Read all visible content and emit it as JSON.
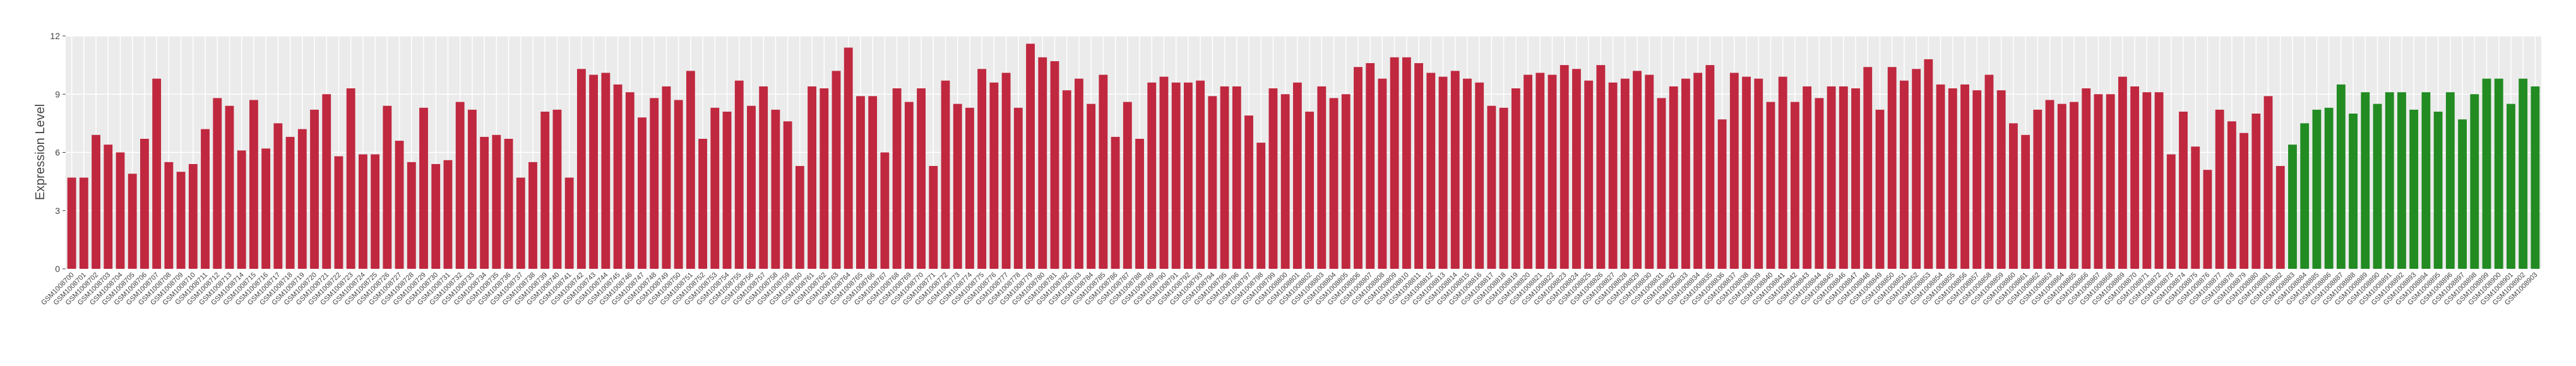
{
  "chart_data": {
    "type": "bar",
    "y_label": "Expression Level",
    "ylim": [
      0,
      12
    ],
    "yticks": [
      0,
      3,
      6,
      9,
      12
    ],
    "grid": true,
    "categories": [
      "GSM1008700",
      "GSM1008701",
      "GSM1008702",
      "GSM1008703",
      "GSM1008704",
      "GSM1008705",
      "GSM1008706",
      "GSM1008707",
      "GSM1008708",
      "GSM1008709",
      "GSM1008710",
      "GSM1008711",
      "GSM1008712",
      "GSM1008713",
      "GSM1008714",
      "GSM1008715",
      "GSM1008716",
      "GSM1008717",
      "GSM1008718",
      "GSM1008719",
      "GSM1008720",
      "GSM1008721",
      "GSM1008722",
      "GSM1008723",
      "GSM1008724",
      "GSM1008725",
      "GSM1008726",
      "GSM1008727",
      "GSM1008728",
      "GSM1008729",
      "GSM1008730",
      "GSM1008731",
      "GSM1008732",
      "GSM1008733",
      "GSM1008734",
      "GSM1008735",
      "GSM1008736",
      "GSM1008737",
      "GSM1008738",
      "GSM1008739",
      "GSM1008740",
      "GSM1008741",
      "GSM1008742",
      "GSM1008743",
      "GSM1008744",
      "GSM1008745",
      "GSM1008746",
      "GSM1008747",
      "GSM1008748",
      "GSM1008749",
      "GSM1008750",
      "GSM1008751",
      "GSM1008752",
      "GSM1008753",
      "GSM1008754",
      "GSM1008755",
      "GSM1008756",
      "GSM1008757",
      "GSM1008758",
      "GSM1008759",
      "GSM1008760",
      "GSM1008761",
      "GSM1008762",
      "GSM1008763",
      "GSM1008764",
      "GSM1008765",
      "GSM1008766",
      "GSM1008767",
      "GSM1008768",
      "GSM1008769",
      "GSM1008770",
      "GSM1008771",
      "GSM1008772",
      "GSM1008773",
      "GSM1008774",
      "GSM1008775",
      "GSM1008776",
      "GSM1008777",
      "GSM1008778",
      "GSM1008779",
      "GSM1008780",
      "GSM1008781",
      "GSM1008782",
      "GSM1008783",
      "GSM1008784",
      "GSM1008785",
      "GSM1008786",
      "GSM1008787",
      "GSM1008788",
      "GSM1008789",
      "GSM1008790",
      "GSM1008791",
      "GSM1008792",
      "GSM1008793",
      "GSM1008794",
      "GSM1008795",
      "GSM1008796",
      "GSM1008797",
      "GSM1008798",
      "GSM1008799",
      "GSM1008800",
      "GSM1008801",
      "GSM1008802",
      "GSM1008803",
      "GSM1008804",
      "GSM1008805",
      "GSM1008806",
      "GSM1008807",
      "GSM1008808",
      "GSM1008809",
      "GSM1008810",
      "GSM1008811",
      "GSM1008812",
      "GSM1008813",
      "GSM1008814",
      "GSM1008815",
      "GSM1008816",
      "GSM1008817",
      "GSM1008818",
      "GSM1008819",
      "GSM1008820",
      "GSM1008821",
      "GSM1008822",
      "GSM1008823",
      "GSM1008824",
      "GSM1008825",
      "GSM1008826",
      "GSM1008827",
      "GSM1008828",
      "GSM1008829",
      "GSM1008830",
      "GSM1008831",
      "GSM1008832",
      "GSM1008833",
      "GSM1008834",
      "GSM1008835",
      "GSM1008836",
      "GSM1008837",
      "GSM1008838",
      "GSM1008839",
      "GSM1008840",
      "GSM1008841",
      "GSM1008842",
      "GSM1008843",
      "GSM1008844",
      "GSM1008845",
      "GSM1008846",
      "GSM1008847",
      "GSM1008848",
      "GSM1008849",
      "GSM1008850",
      "GSM1008851",
      "GSM1008852",
      "GSM1008853",
      "GSM1008854",
      "GSM1008855",
      "GSM1008856",
      "GSM1008857",
      "GSM1008858",
      "GSM1008859",
      "GSM1008860",
      "GSM1008861",
      "GSM1008862",
      "GSM1008863",
      "GSM1008864",
      "GSM1008865",
      "GSM1008866",
      "GSM1008867",
      "GSM1008868",
      "GSM1008869",
      "GSM1008870",
      "GSM1008871",
      "GSM1008872",
      "GSM1008873",
      "GSM1008874",
      "GSM1008875",
      "GSM1008876",
      "GSM1008877",
      "GSM1008878",
      "GSM1008879",
      "GSM1008880",
      "GSM1008881",
      "GSM1008882",
      "GSM1008883",
      "GSM1008884",
      "GSM1008885",
      "GSM1008886",
      "GSM1008887",
      "GSM1008888",
      "GSM1008889",
      "GSM1008890",
      "GSM1008891",
      "GSM1008892",
      "GSM1008893",
      "GSM1008894",
      "GSM1008895",
      "GSM1008896",
      "GSM1008897",
      "GSM1008898",
      "GSM1008899",
      "GSM1008900",
      "GSM1008901",
      "GSM1008902",
      "GSM1008903"
    ],
    "values": [
      4.7,
      4.7,
      6.9,
      6.4,
      6.0,
      4.9,
      6.7,
      9.8,
      5.5,
      5.0,
      5.4,
      7.2,
      8.8,
      8.4,
      6.1,
      8.7,
      6.2,
      7.5,
      6.8,
      7.2,
      8.2,
      9.0,
      5.8,
      9.3,
      5.9,
      5.9,
      8.4,
      6.6,
      5.5,
      8.3,
      5.4,
      5.6,
      8.6,
      8.2,
      6.8,
      6.9,
      6.7,
      4.7,
      5.5,
      8.1,
      8.2,
      4.7,
      10.3,
      10.0,
      10.1,
      9.5,
      9.1,
      7.8,
      8.8,
      9.4,
      8.7,
      10.2,
      6.7,
      8.3,
      8.1,
      9.7,
      8.4,
      9.4,
      8.2,
      7.6,
      5.3,
      9.4,
      9.3,
      10.2,
      11.4,
      8.9,
      8.9,
      6.0,
      9.3,
      8.6,
      9.3,
      5.3,
      9.7,
      8.5,
      8.3,
      10.3,
      9.6,
      10.1,
      8.3,
      11.6,
      10.9,
      10.7,
      9.2,
      9.8,
      8.5,
      10.0,
      6.8,
      8.6,
      6.7,
      9.6,
      9.9,
      9.6,
      9.6,
      9.7,
      8.9,
      9.4,
      9.4,
      7.9,
      6.5,
      9.3,
      9.0,
      9.6,
      8.1,
      9.4,
      8.8,
      9.0,
      10.4,
      10.6,
      9.8,
      10.9,
      10.9,
      10.6,
      10.1,
      9.9,
      10.2,
      9.8,
      9.6,
      8.4,
      8.3,
      9.3,
      10.0,
      10.1,
      10.0,
      10.5,
      10.3,
      9.7,
      10.5,
      9.6,
      9.8,
      10.2,
      10.0,
      8.8,
      9.4,
      9.8,
      10.1,
      10.5,
      7.7,
      10.1,
      9.9,
      9.8,
      8.6,
      9.9,
      8.6,
      9.4,
      8.8,
      9.4,
      9.4,
      9.3,
      10.4,
      8.2,
      10.4,
      9.7,
      10.3,
      10.8,
      9.5,
      9.3,
      9.5,
      9.2,
      10.0,
      9.2,
      7.5,
      6.9,
      8.2,
      8.7,
      8.5,
      8.6,
      9.3,
      9.0,
      9.0,
      9.9,
      9.4,
      9.1,
      9.1,
      5.9,
      8.1,
      6.3,
      5.1,
      8.2,
      7.6,
      7.0,
      8.0,
      8.9,
      5.3,
      6.4,
      7.5,
      8.2,
      8.3,
      9.5,
      8.0,
      9.1,
      8.5,
      9.1,
      9.1,
      8.2,
      9.1,
      8.1,
      9.1,
      7.7,
      9.0,
      9.8,
      9.8,
      8.5,
      9.8,
      9.4
    ],
    "colors": [
      "#c0283f",
      "#c0283f",
      "#c0283f",
      "#c0283f",
      "#c0283f",
      "#c0283f",
      "#c0283f",
      "#c0283f",
      "#c0283f",
      "#c0283f",
      "#c0283f",
      "#c0283f",
      "#c0283f",
      "#c0283f",
      "#c0283f",
      "#c0283f",
      "#c0283f",
      "#c0283f",
      "#c0283f",
      "#c0283f",
      "#c0283f",
      "#c0283f",
      "#c0283f",
      "#c0283f",
      "#c0283f",
      "#c0283f",
      "#c0283f",
      "#c0283f",
      "#c0283f",
      "#c0283f",
      "#c0283f",
      "#c0283f",
      "#c0283f",
      "#c0283f",
      "#c0283f",
      "#c0283f",
      "#c0283f",
      "#c0283f",
      "#c0283f",
      "#c0283f",
      "#c0283f",
      "#c0283f",
      "#c0283f",
      "#c0283f",
      "#c0283f",
      "#c0283f",
      "#c0283f",
      "#c0283f",
      "#c0283f",
      "#c0283f",
      "#c0283f",
      "#c0283f",
      "#c0283f",
      "#c0283f",
      "#c0283f",
      "#c0283f",
      "#c0283f",
      "#c0283f",
      "#c0283f",
      "#c0283f",
      "#c0283f",
      "#c0283f",
      "#c0283f",
      "#c0283f",
      "#c0283f",
      "#c0283f",
      "#c0283f",
      "#c0283f",
      "#c0283f",
      "#c0283f",
      "#c0283f",
      "#c0283f",
      "#c0283f",
      "#c0283f",
      "#c0283f",
      "#c0283f",
      "#c0283f",
      "#c0283f",
      "#c0283f",
      "#c0283f",
      "#c0283f",
      "#c0283f",
      "#c0283f",
      "#c0283f",
      "#c0283f",
      "#c0283f",
      "#c0283f",
      "#c0283f",
      "#c0283f",
      "#c0283f",
      "#c0283f",
      "#c0283f",
      "#c0283f",
      "#c0283f",
      "#c0283f",
      "#c0283f",
      "#c0283f",
      "#c0283f",
      "#c0283f",
      "#c0283f",
      "#c0283f",
      "#c0283f",
      "#c0283f",
      "#c0283f",
      "#c0283f",
      "#c0283f",
      "#c0283f",
      "#c0283f",
      "#c0283f",
      "#c0283f",
      "#c0283f",
      "#c0283f",
      "#c0283f",
      "#c0283f",
      "#c0283f",
      "#c0283f",
      "#c0283f",
      "#c0283f",
      "#c0283f",
      "#c0283f",
      "#c0283f",
      "#c0283f",
      "#c0283f",
      "#c0283f",
      "#c0283f",
      "#c0283f",
      "#c0283f",
      "#c0283f",
      "#c0283f",
      "#c0283f",
      "#c0283f",
      "#c0283f",
      "#c0283f",
      "#c0283f",
      "#c0283f",
      "#c0283f",
      "#c0283f",
      "#c0283f",
      "#c0283f",
      "#c0283f",
      "#c0283f",
      "#c0283f",
      "#c0283f",
      "#c0283f",
      "#c0283f",
      "#c0283f",
      "#c0283f",
      "#c0283f",
      "#c0283f",
      "#c0283f",
      "#c0283f",
      "#c0283f",
      "#c0283f",
      "#c0283f",
      "#c0283f",
      "#c0283f",
      "#c0283f",
      "#c0283f",
      "#c0283f",
      "#c0283f",
      "#c0283f",
      "#c0283f",
      "#c0283f",
      "#c0283f",
      "#c0283f",
      "#c0283f",
      "#c0283f",
      "#c0283f",
      "#c0283f",
      "#c0283f",
      "#c0283f",
      "#c0283f",
      "#c0283f",
      "#c0283f",
      "#c0283f",
      "#c0283f",
      "#c0283f",
      "#c0283f",
      "#c0283f",
      "#c0283f",
      "#c0283f",
      "#c0283f",
      "#c0283f",
      "#228b22",
      "#228b22",
      "#228b22",
      "#228b22",
      "#228b22",
      "#228b22",
      "#228b22",
      "#228b22",
      "#228b22",
      "#228b22",
      "#228b22",
      "#228b22",
      "#228b22",
      "#228b22",
      "#228b22",
      "#228b22",
      "#228b22",
      "#228b22",
      "#228b22",
      "#228b22",
      "#228b22"
    ]
  }
}
